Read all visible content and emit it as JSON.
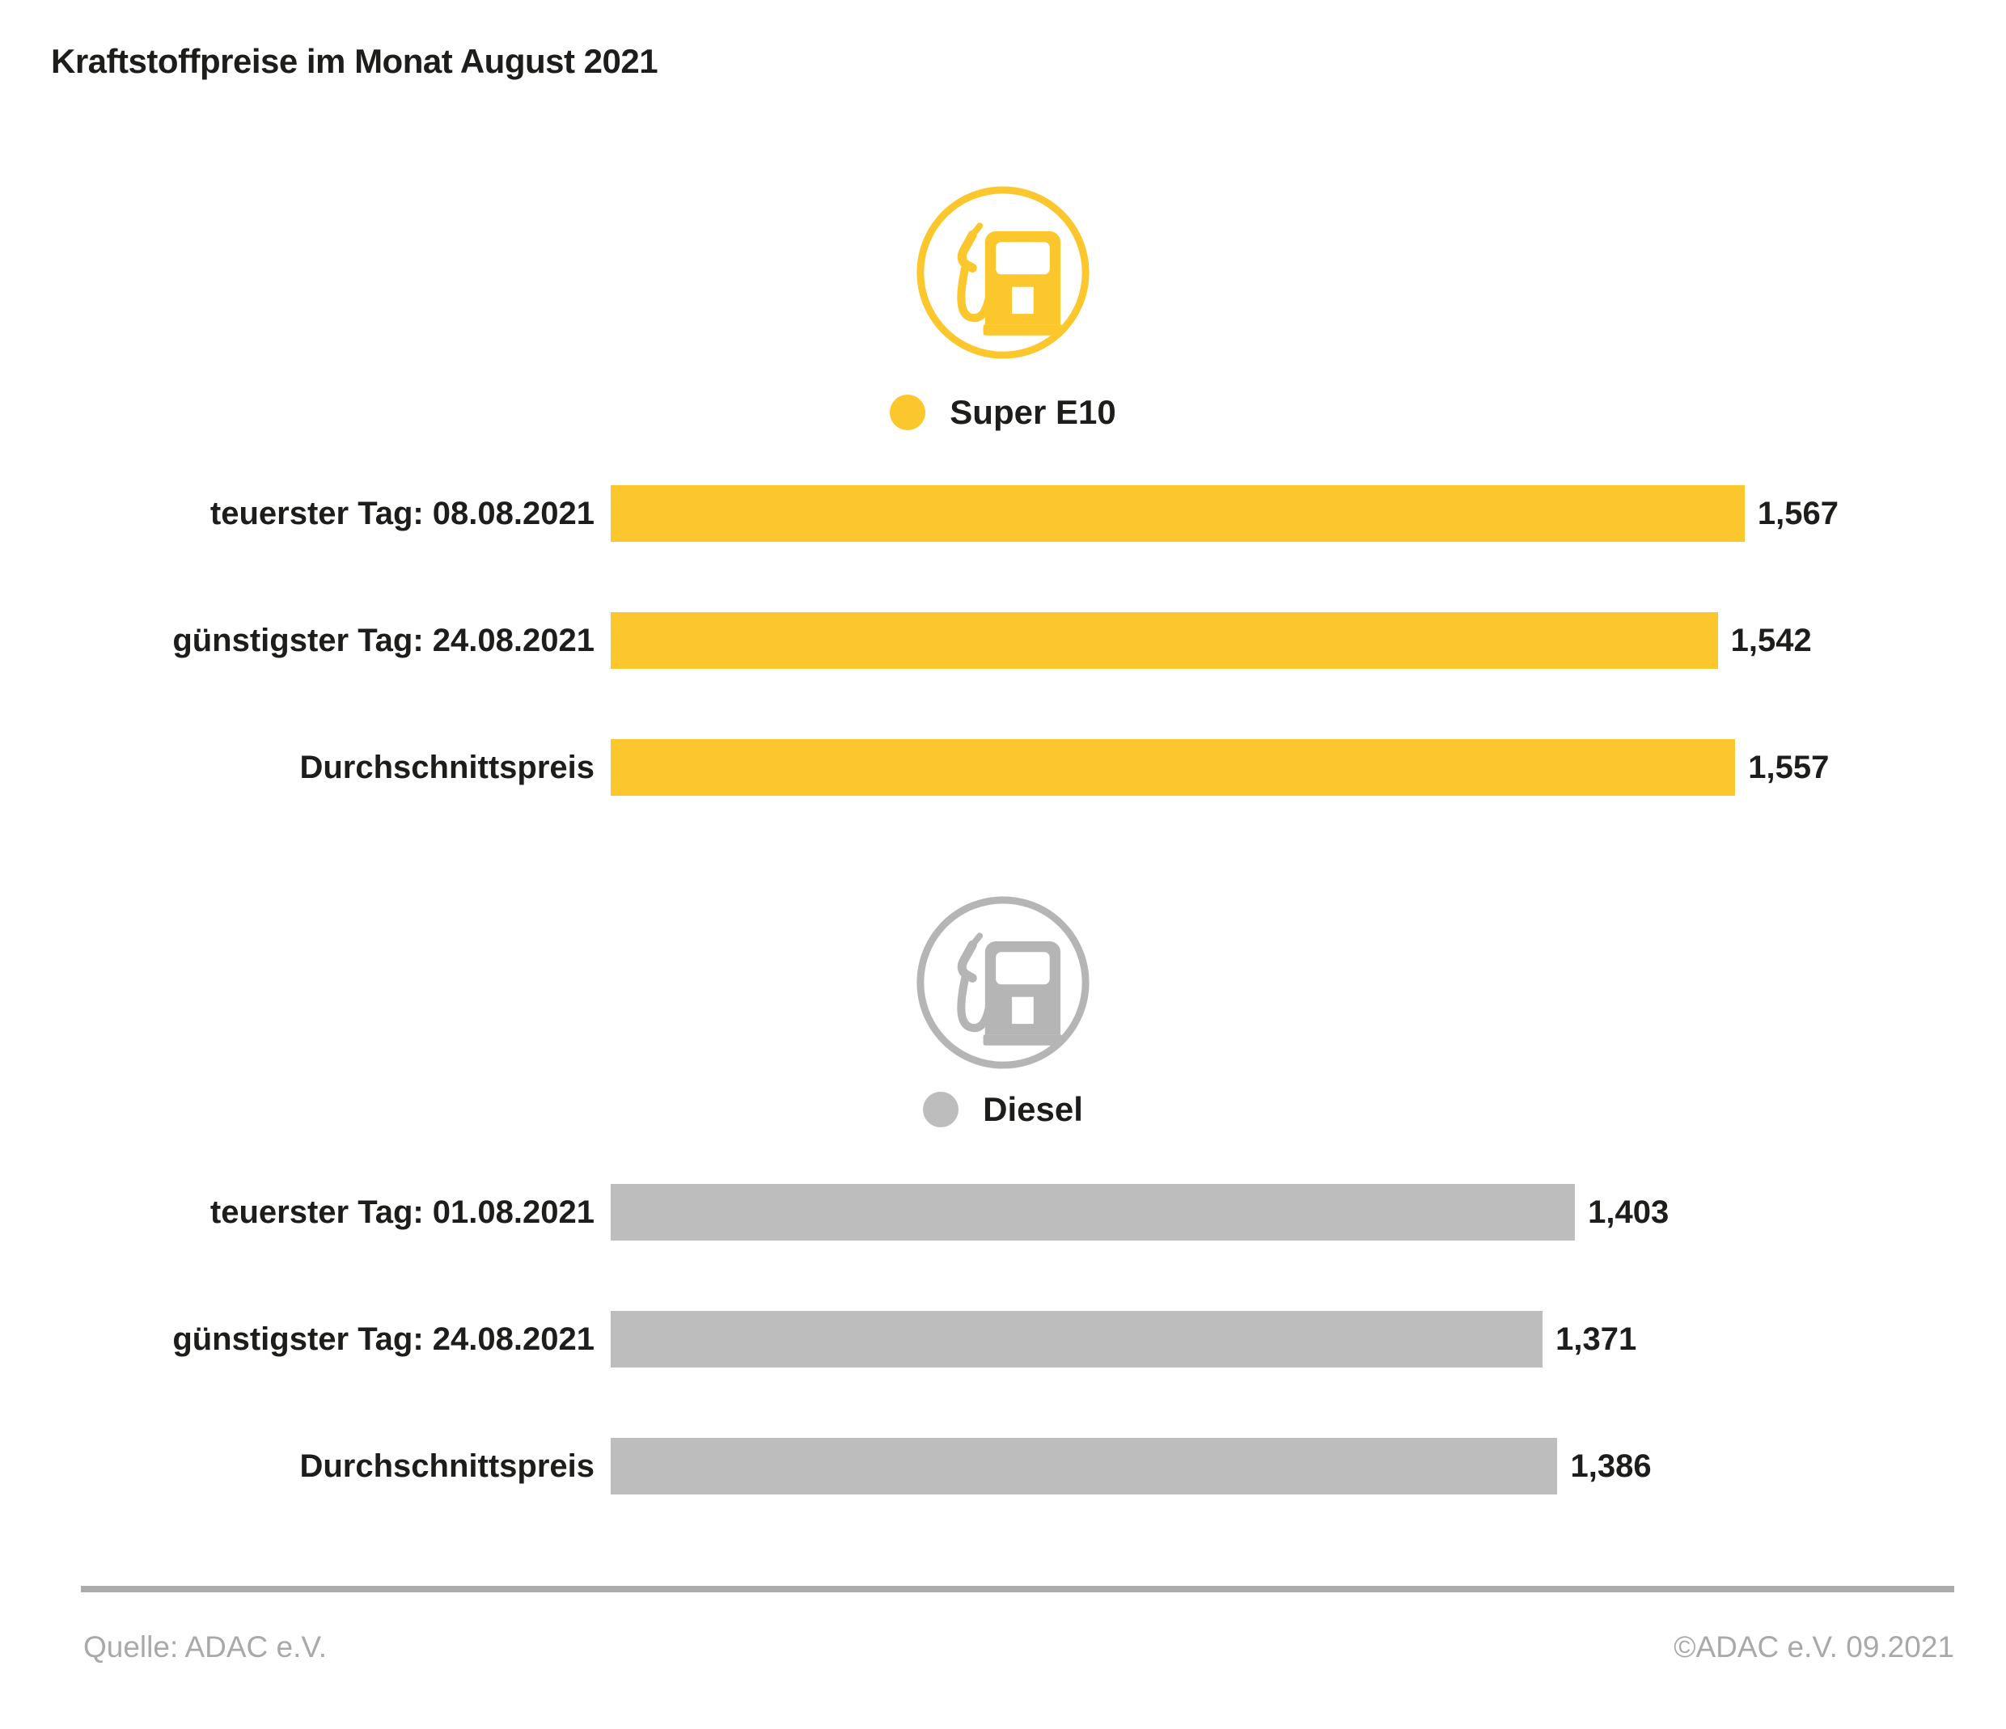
{
  "title": "Kraftstoffpreise im Monat August 2021",
  "colors": {
    "super_e10": "#FCC62D",
    "diesel": "#BDBDBD",
    "text": "#1D1D1B",
    "footer_gray": "#A9A9A9"
  },
  "chart_data": {
    "type": "bar",
    "orientation": "horizontal",
    "title": "Kraftstoffpreise im Monat August 2021",
    "value_format": "german-decimal-comma, Euro per liter",
    "xlim": [
      0,
      1.6
    ],
    "grid": false,
    "legend_position": "above-each-section",
    "sections": [
      {
        "name": "Super E10",
        "legend_label": "Super E10",
        "icon": "fuel-pump-icon",
        "color": "#FCC62D",
        "rows": [
          {
            "label": "teuerster Tag: 08.08.2021",
            "value": "1,567",
            "value_num": 1.567,
            "width_pct": 84.2
          },
          {
            "label": "günstigster Tag: 24.08.2021",
            "value": "1,542",
            "value_num": 1.542,
            "width_pct": 82.2
          },
          {
            "label": "Durchschnittspreis",
            "value": "1,557",
            "value_num": 1.557,
            "width_pct": 83.5
          }
        ]
      },
      {
        "name": "Diesel",
        "legend_label": "Diesel",
        "icon": "fuel-pump-icon",
        "color": "#BDBDBD",
        "rows": [
          {
            "label": "teuerster Tag: 01.08.2021",
            "value": "1,403",
            "value_num": 1.403,
            "width_pct": 71.6
          },
          {
            "label": "günstigster Tag: 24.08.2021",
            "value": "1,371",
            "value_num": 1.371,
            "width_pct": 69.2
          },
          {
            "label": "Durchschnittspreis",
            "value": "1,386",
            "value_num": 1.386,
            "width_pct": 70.3
          }
        ]
      }
    ]
  },
  "footer": {
    "source": "Quelle: ADAC e.V.",
    "copyright": "©ADAC e.V. 09.2021"
  }
}
